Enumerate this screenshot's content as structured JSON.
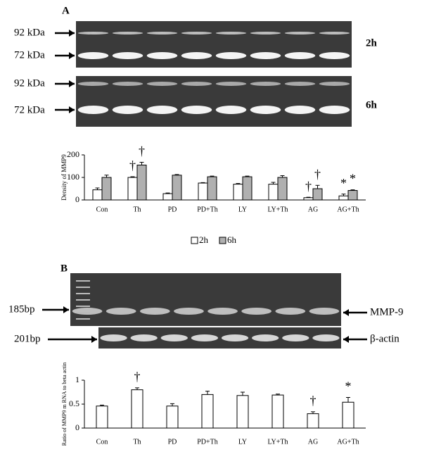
{
  "figure": {
    "panel_a": {
      "label": "A",
      "gel_labels": [
        "92 kDa",
        "72 kDa"
      ],
      "times": [
        "2h",
        "6h"
      ]
    },
    "panel_b": {
      "label": "B",
      "left_labels": [
        "185bp",
        "201bp"
      ],
      "right_labels": [
        "MMP-9",
        "β-actin"
      ]
    }
  },
  "chart_data": [
    {
      "type": "bar",
      "ylabel": "Density of MMP9",
      "categories": [
        "Con",
        "Th",
        "PD",
        "PD+Th",
        "LY",
        "LY+Th",
        "AG",
        "AG+Th"
      ],
      "series": [
        {
          "name": "2h",
          "color": "#ffffff",
          "values": [
            45,
            100,
            28,
            75,
            70,
            70,
            10,
            18
          ],
          "errors": [
            8,
            3,
            3,
            2,
            3,
            8,
            2,
            8
          ]
        },
        {
          "name": "6h",
          "color": "#b0b0b0",
          "values": [
            100,
            155,
            110,
            103,
            103,
            100,
            50,
            42
          ],
          "errors": [
            10,
            12,
            3,
            3,
            3,
            8,
            15,
            3
          ]
        }
      ],
      "ylim": [
        0,
        200
      ],
      "yticks": [
        0,
        100,
        200
      ],
      "legend": "bottom",
      "annotations": [
        {
          "text": "†",
          "category": "Th",
          "series": "2h"
        },
        {
          "text": "†",
          "category": "Th",
          "series": "6h"
        },
        {
          "text": "†",
          "category": "AG",
          "series": "2h"
        },
        {
          "text": "†",
          "category": "AG",
          "series": "6h"
        },
        {
          "text": "*",
          "category": "AG+Th",
          "series": "2h"
        },
        {
          "text": "*",
          "category": "AG+Th",
          "series": "6h"
        }
      ]
    },
    {
      "type": "bar",
      "ylabel": "Ratio of MMP9 m RNA to beta actin",
      "categories": [
        "Con",
        "Th",
        "PD",
        "PD+Th",
        "LY",
        "LY+Th",
        "AG",
        "AG+Th"
      ],
      "values": [
        0.46,
        0.8,
        0.46,
        0.7,
        0.68,
        0.69,
        0.3,
        0.54
      ],
      "errors": [
        0.02,
        0.04,
        0.05,
        0.07,
        0.07,
        0.02,
        0.04,
        0.1
      ],
      "color": "#ffffff",
      "ylim": [
        0,
        1
      ],
      "yticks": [
        0,
        0.5,
        1
      ],
      "annotations": [
        {
          "text": "†",
          "category": "Th"
        },
        {
          "text": "†",
          "category": "AG"
        },
        {
          "text": "*",
          "category": "AG+Th"
        }
      ]
    }
  ]
}
